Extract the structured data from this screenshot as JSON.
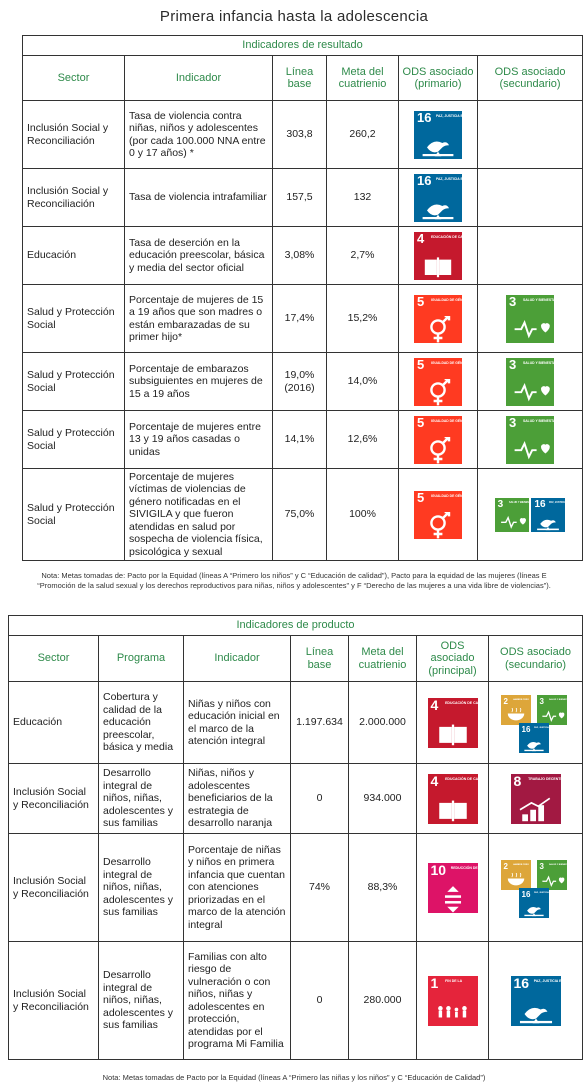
{
  "title": "Primera infancia hasta la adolescencia",
  "results": {
    "section_title": "Indicadores de resultado",
    "headers": {
      "sector": "Sector",
      "indicador": "Indicador",
      "linea": "Línea base",
      "meta": "Meta del cuatrienio",
      "ods1": "ODS asociado (primario)",
      "ods2": "ODS asociado (secundario)"
    },
    "rows": [
      {
        "sector": "Inclusión Social y Reconciliación",
        "indicador": "Tasa de violencia contra niñas, niños y adolescentes (por cada 100.000 NNA entre 0 y 17 años) *",
        "linea": "303,8",
        "meta": "260,2",
        "ods1": "sdg-16-icon",
        "ods2": ""
      },
      {
        "sector": "Inclusión Social y Reconciliación",
        "indicador": "Tasa de violencia intrafamiliar",
        "linea": "157,5",
        "meta": "132",
        "ods1": "sdg-16-icon",
        "ods2": ""
      },
      {
        "sector": "Educación",
        "indicador": "Tasa de deserción en la educación preescolar, básica y media del sector oficial",
        "linea": "3,08%",
        "meta": "2,7%",
        "ods1": "sdg-4-icon",
        "ods2": ""
      },
      {
        "sector": "Salud y Protección Social",
        "indicador": "Porcentaje de mujeres de 15 a 19 años que son madres o están embarazadas de su primer hijo*",
        "linea": "17,4%",
        "meta": "15,2%",
        "ods1": "sdg-5-icon",
        "ods2": "sdg-3-icon"
      },
      {
        "sector": "Salud y Protección Social",
        "indicador": "Porcentaje de embarazos subsiguientes en mujeres de 15 a 19 años",
        "linea": "19,0% (2016)",
        "meta": "14,0%",
        "ods1": "sdg-5-icon",
        "ods2": "sdg-3-icon"
      },
      {
        "sector": "Salud y Protección Social",
        "indicador": "Porcentaje de mujeres entre 13 y 19 años casadas o unidas",
        "linea": "14,1%",
        "meta": "12,6%",
        "ods1": "sdg-5-icon",
        "ods2": "sdg-3-icon"
      },
      {
        "sector": "Salud y Protección Social",
        "indicador": "Porcentaje de mujeres víctimas de violencias de género notificadas en el SIVIGILA y que fueron atendidas en salud por sospecha de violencia física, psicológica y sexual",
        "linea": "75,0%",
        "meta": "100%",
        "ods1": "sdg-5-icon",
        "ods2": "sdg-3-and-16-icons"
      }
    ],
    "note": "Nota: Metas tomadas de: Pacto por la Equidad (líneas A “Primero los niños” y C “Educación de calidad”), Pacto para la equidad de las mujeres (líneas E “Promoción de la salud sexual y los derechos reproductivos para niñas, niños y adolescentes” y F “Derecho de las mujeres a una vida libre de violencias”)."
  },
  "products": {
    "section_title": "Indicadores de producto",
    "headers": {
      "sector": "Sector",
      "programa": "Programa",
      "indicador": "Indicador",
      "linea": "Línea base",
      "meta": "Meta del cuatrienio",
      "ods1": "ODS asociado (principal)",
      "ods2": "ODS asociado (secundario)"
    },
    "rows": [
      {
        "sector": "Educación",
        "programa": "Cobertura y calidad de la educación preescolar, básica y media",
        "indicador": "Niñas y niños con educación inicial en el marco de la atención integral",
        "linea": "1.197.634",
        "meta": "2.000.000",
        "ods1": "sdg-4-icon",
        "ods2": "sdg-2-3-16-icons"
      },
      {
        "sector": "Inclusión Social y Reconciliación",
        "programa": "Desarrollo integral de niños, niñas, adolescentes y sus familias",
        "indicador": "Niñas, niños y adolescentes beneficiarios de la estrategia de desarrollo naranja",
        "linea": "0",
        "meta": "934.000",
        "ods1": "sdg-4-icon",
        "ods2": "sdg-8-icon"
      },
      {
        "sector": "Inclusión Social y Reconciliación",
        "programa": "Desarrollo integral de niños, niñas, adolescentes y sus familias",
        "indicador": "Porcentaje de niñas y niños en primera infancia que cuentan con atenciones priorizadas en el marco de la atención integral",
        "linea": "74%",
        "meta": "88,3%",
        "ods1": "sdg-10-icon",
        "ods2": "sdg-2-3-16-icons"
      },
      {
        "sector": "Inclusión Social y Reconciliación",
        "programa": "Desarrollo integral de niños, niñas, adolescentes y sus familias",
        "indicador": "Familias con alto riesgo de vulneración o con niños, niñas y adolescentes en protección, atendidas por el programa Mi Familia",
        "linea": "0",
        "meta": "280.000",
        "ods1": "sdg-1-icon",
        "ods2": "sdg-16-icon"
      }
    ],
    "note": "Nota: Metas tomadas de Pacto por la Equidad (líneas A “Primero las niñas y los niños” y C “Educación de Calidad”)"
  },
  "sdg": {
    "1": {
      "num": "1",
      "label": "FIN DE LA POBREZA",
      "color": "#e5243b"
    },
    "2": {
      "num": "2",
      "label": "HAMBRE CERO",
      "color": "#dda63a"
    },
    "3": {
      "num": "3",
      "label": "SALUD Y BIENESTAR",
      "color": "#4c9f38"
    },
    "4": {
      "num": "4",
      "label": "EDUCACIÓN DE CALIDAD",
      "color": "#c5192d"
    },
    "5": {
      "num": "5",
      "label": "IGUALDAD DE GÉNERO",
      "color": "#ff3a21"
    },
    "8": {
      "num": "8",
      "label": "TRABAJO DECENTE Y CRECIMIENTO ECONÓMICO",
      "color": "#a21942"
    },
    "10": {
      "num": "10",
      "label": "REDUCCIÓN DE LAS DESIGUALDADES",
      "color": "#dd1367"
    },
    "16": {
      "num": "16",
      "label": "PAZ, JUSTICIA E INSTITUCIONES SÓLIDAS",
      "color": "#00689d"
    }
  }
}
